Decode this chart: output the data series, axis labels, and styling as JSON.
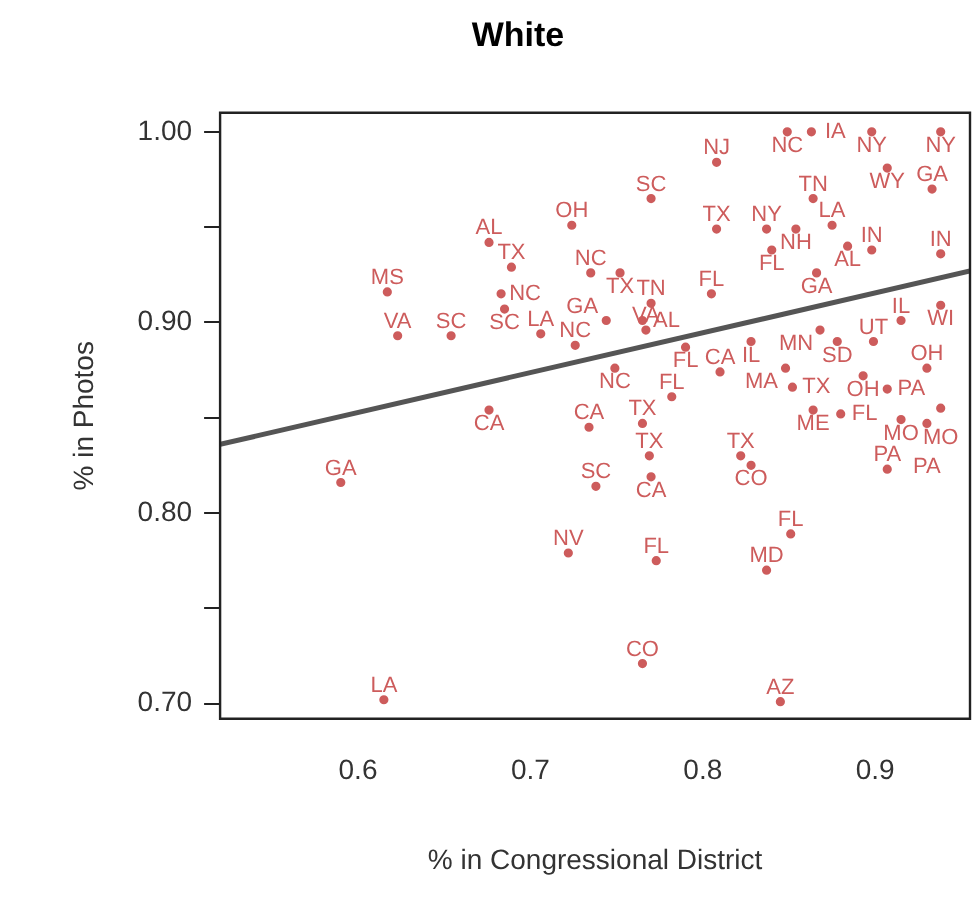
{
  "chart_data": {
    "type": "scatter",
    "title": "White",
    "xlabel": "% in Congressional District",
    "ylabel": "% in Photos",
    "xlim": [
      0.52,
      0.955
    ],
    "ylim": [
      0.692,
      1.01
    ],
    "xticks": [
      0.6,
      0.7,
      0.8,
      0.9
    ],
    "yticks": [
      {
        "value": 0.7,
        "label": "0.70"
      },
      {
        "value": 0.75,
        "label": null
      },
      {
        "value": 0.8,
        "label": "0.80"
      },
      {
        "value": 0.85,
        "label": null
      },
      {
        "value": 0.9,
        "label": "0.90"
      },
      {
        "value": 0.95,
        "label": null
      },
      {
        "value": 1.0,
        "label": "1.00"
      }
    ],
    "series": [
      {
        "type": "scatter",
        "color": "#cd5c5c",
        "marker": "circle",
        "x": [
          0.59,
          0.615,
          0.617,
          0.623,
          0.654,
          0.676,
          0.689,
          0.683,
          0.685,
          0.676,
          0.724,
          0.735,
          0.752,
          0.706,
          0.726,
          0.749,
          0.744,
          0.765,
          0.767,
          0.77,
          0.77,
          0.808,
          0.808,
          0.782,
          0.734,
          0.765,
          0.769,
          0.77,
          0.738,
          0.722,
          0.773,
          0.765,
          0.845,
          0.837,
          0.851,
          0.822,
          0.828,
          0.907,
          0.849,
          0.863,
          0.898,
          0.938,
          0.907,
          0.933,
          0.864,
          0.837,
          0.854,
          0.875,
          0.84,
          0.884,
          0.898,
          0.805,
          0.866,
          0.938,
          0.938,
          0.915,
          0.899,
          0.878,
          0.868,
          0.828,
          0.79,
          0.81,
          0.848,
          0.852,
          0.893,
          0.93,
          0.907,
          0.864,
          0.88,
          0.938,
          0.915,
          0.93
        ],
        "values": [
          0.816,
          0.702,
          0.916,
          0.893,
          0.893,
          0.942,
          0.929,
          0.915,
          0.907,
          0.854,
          0.951,
          0.926,
          0.926,
          0.894,
          0.888,
          0.876,
          0.901,
          0.901,
          0.896,
          0.91,
          0.965,
          0.984,
          0.949,
          0.861,
          0.845,
          0.847,
          0.83,
          0.819,
          0.814,
          0.779,
          0.775,
          0.721,
          0.701,
          0.77,
          0.789,
          0.83,
          0.825,
          0.823,
          1.0,
          1.0,
          1.0,
          1.0,
          0.981,
          0.97,
          0.965,
          0.949,
          0.949,
          0.951,
          0.938,
          0.94,
          0.938,
          0.915,
          0.926,
          0.936,
          0.909,
          0.901,
          0.89,
          0.89,
          0.896,
          0.89,
          0.887,
          0.874,
          0.876,
          0.866,
          0.872,
          0.876,
          0.865,
          0.854,
          0.852,
          0.855,
          0.849,
          0.847
        ],
        "value_labels": [
          "GA",
          "LA",
          "MS",
          "VA",
          "SC",
          "AL",
          "TX",
          "NC",
          "SC",
          "CA",
          "OH",
          "NC",
          "TX",
          "LA",
          "NC",
          "NC",
          "GA",
          "AL",
          "VA",
          "TN",
          "SC",
          "NJ",
          "TX",
          "FL",
          "CA",
          "TX",
          "TX",
          "CA",
          "SC",
          "NV",
          "FL",
          "CO",
          "AZ",
          "MD",
          "FL",
          "TX",
          "CO",
          "PA",
          "NC",
          "IA",
          "NY",
          "NY",
          "WY",
          "GA",
          "TN",
          "NY",
          "NH",
          "LA",
          "FL",
          "AL",
          "IN",
          "FL",
          "GA",
          "IN",
          "WI",
          "IL",
          "UT",
          "SD",
          "MN",
          "IL",
          "FL",
          "CA",
          "MA",
          "TX",
          "OH",
          "OH",
          "PA",
          "ME",
          "FL",
          "MO",
          "MO",
          "PA"
        ]
      },
      {
        "type": "line",
        "color": "#555555",
        "marker": "none",
        "x": [
          0.52,
          0.955
        ],
        "values": [
          0.836,
          0.927
        ]
      }
    ]
  }
}
